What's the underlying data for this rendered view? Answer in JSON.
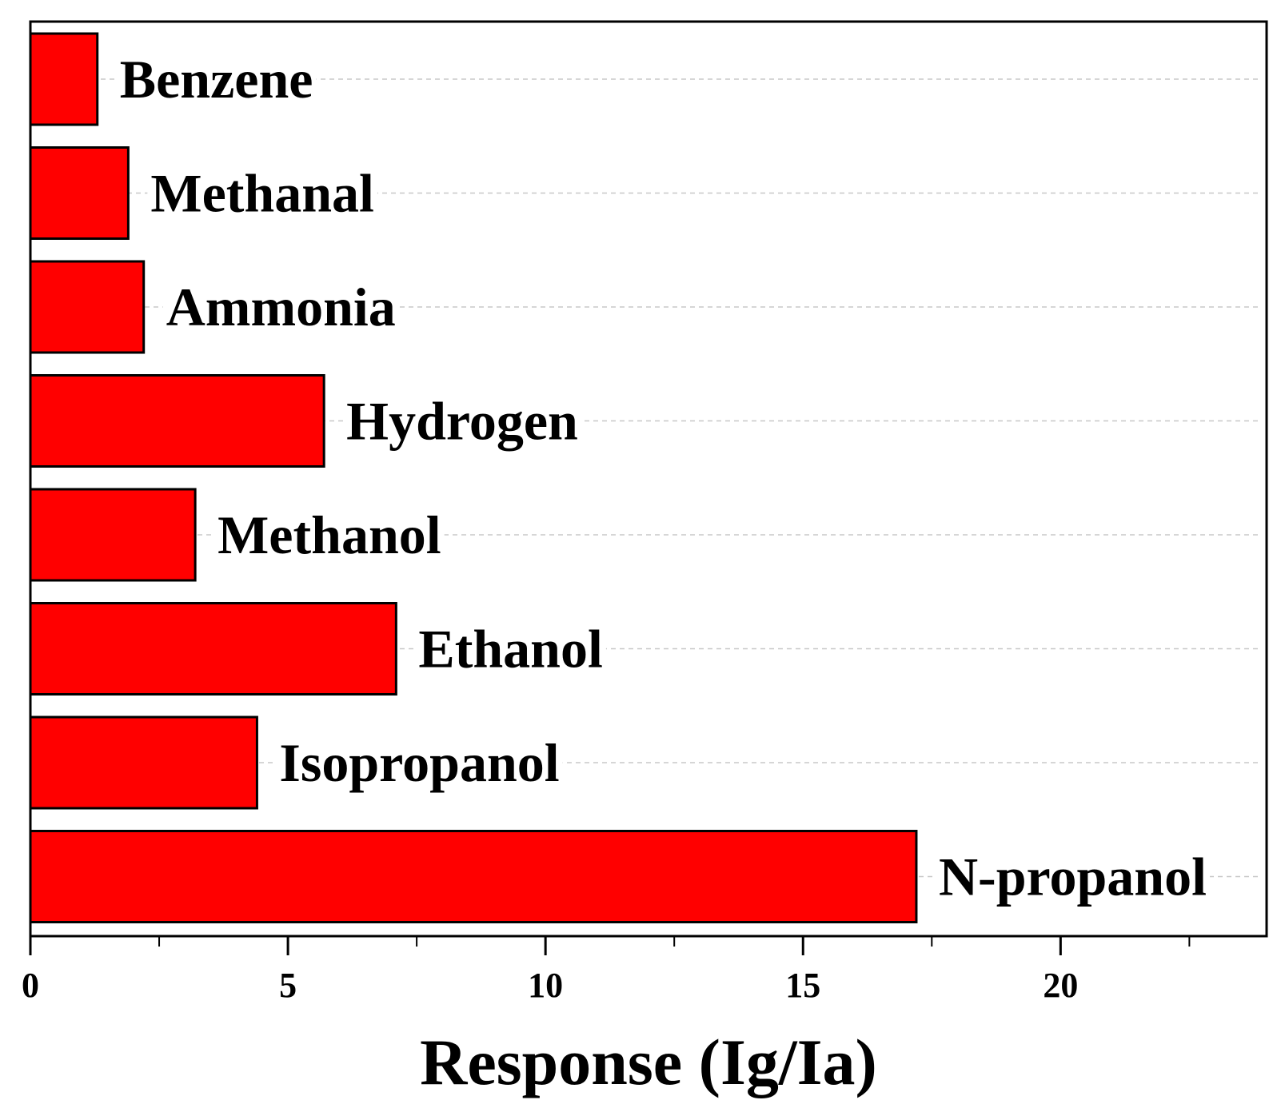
{
  "chart_data": {
    "type": "bar",
    "orientation": "horizontal",
    "categories": [
      "Benzene",
      "Methanal",
      "Ammonia",
      "Hydrogen",
      "Methanol",
      "Ethanol",
      "Isopropanol",
      "N-propanol"
    ],
    "values": [
      1.3,
      1.9,
      2.2,
      5.7,
      3.2,
      7.1,
      4.4,
      17.2
    ],
    "xlabel": "Response (Ig/Ia)",
    "ylabel": "",
    "xlim": [
      0,
      24
    ],
    "xticks": [
      "0",
      "5",
      "10",
      "15",
      "20"
    ],
    "xtick_values": [
      0,
      5,
      10,
      15,
      20
    ],
    "bar_color": "#ff0000",
    "bar_edge_color": "#000000",
    "grid": "horizontal dashed gridlines, light gray",
    "grid_color": "#c8c8c8",
    "legend": "none"
  }
}
